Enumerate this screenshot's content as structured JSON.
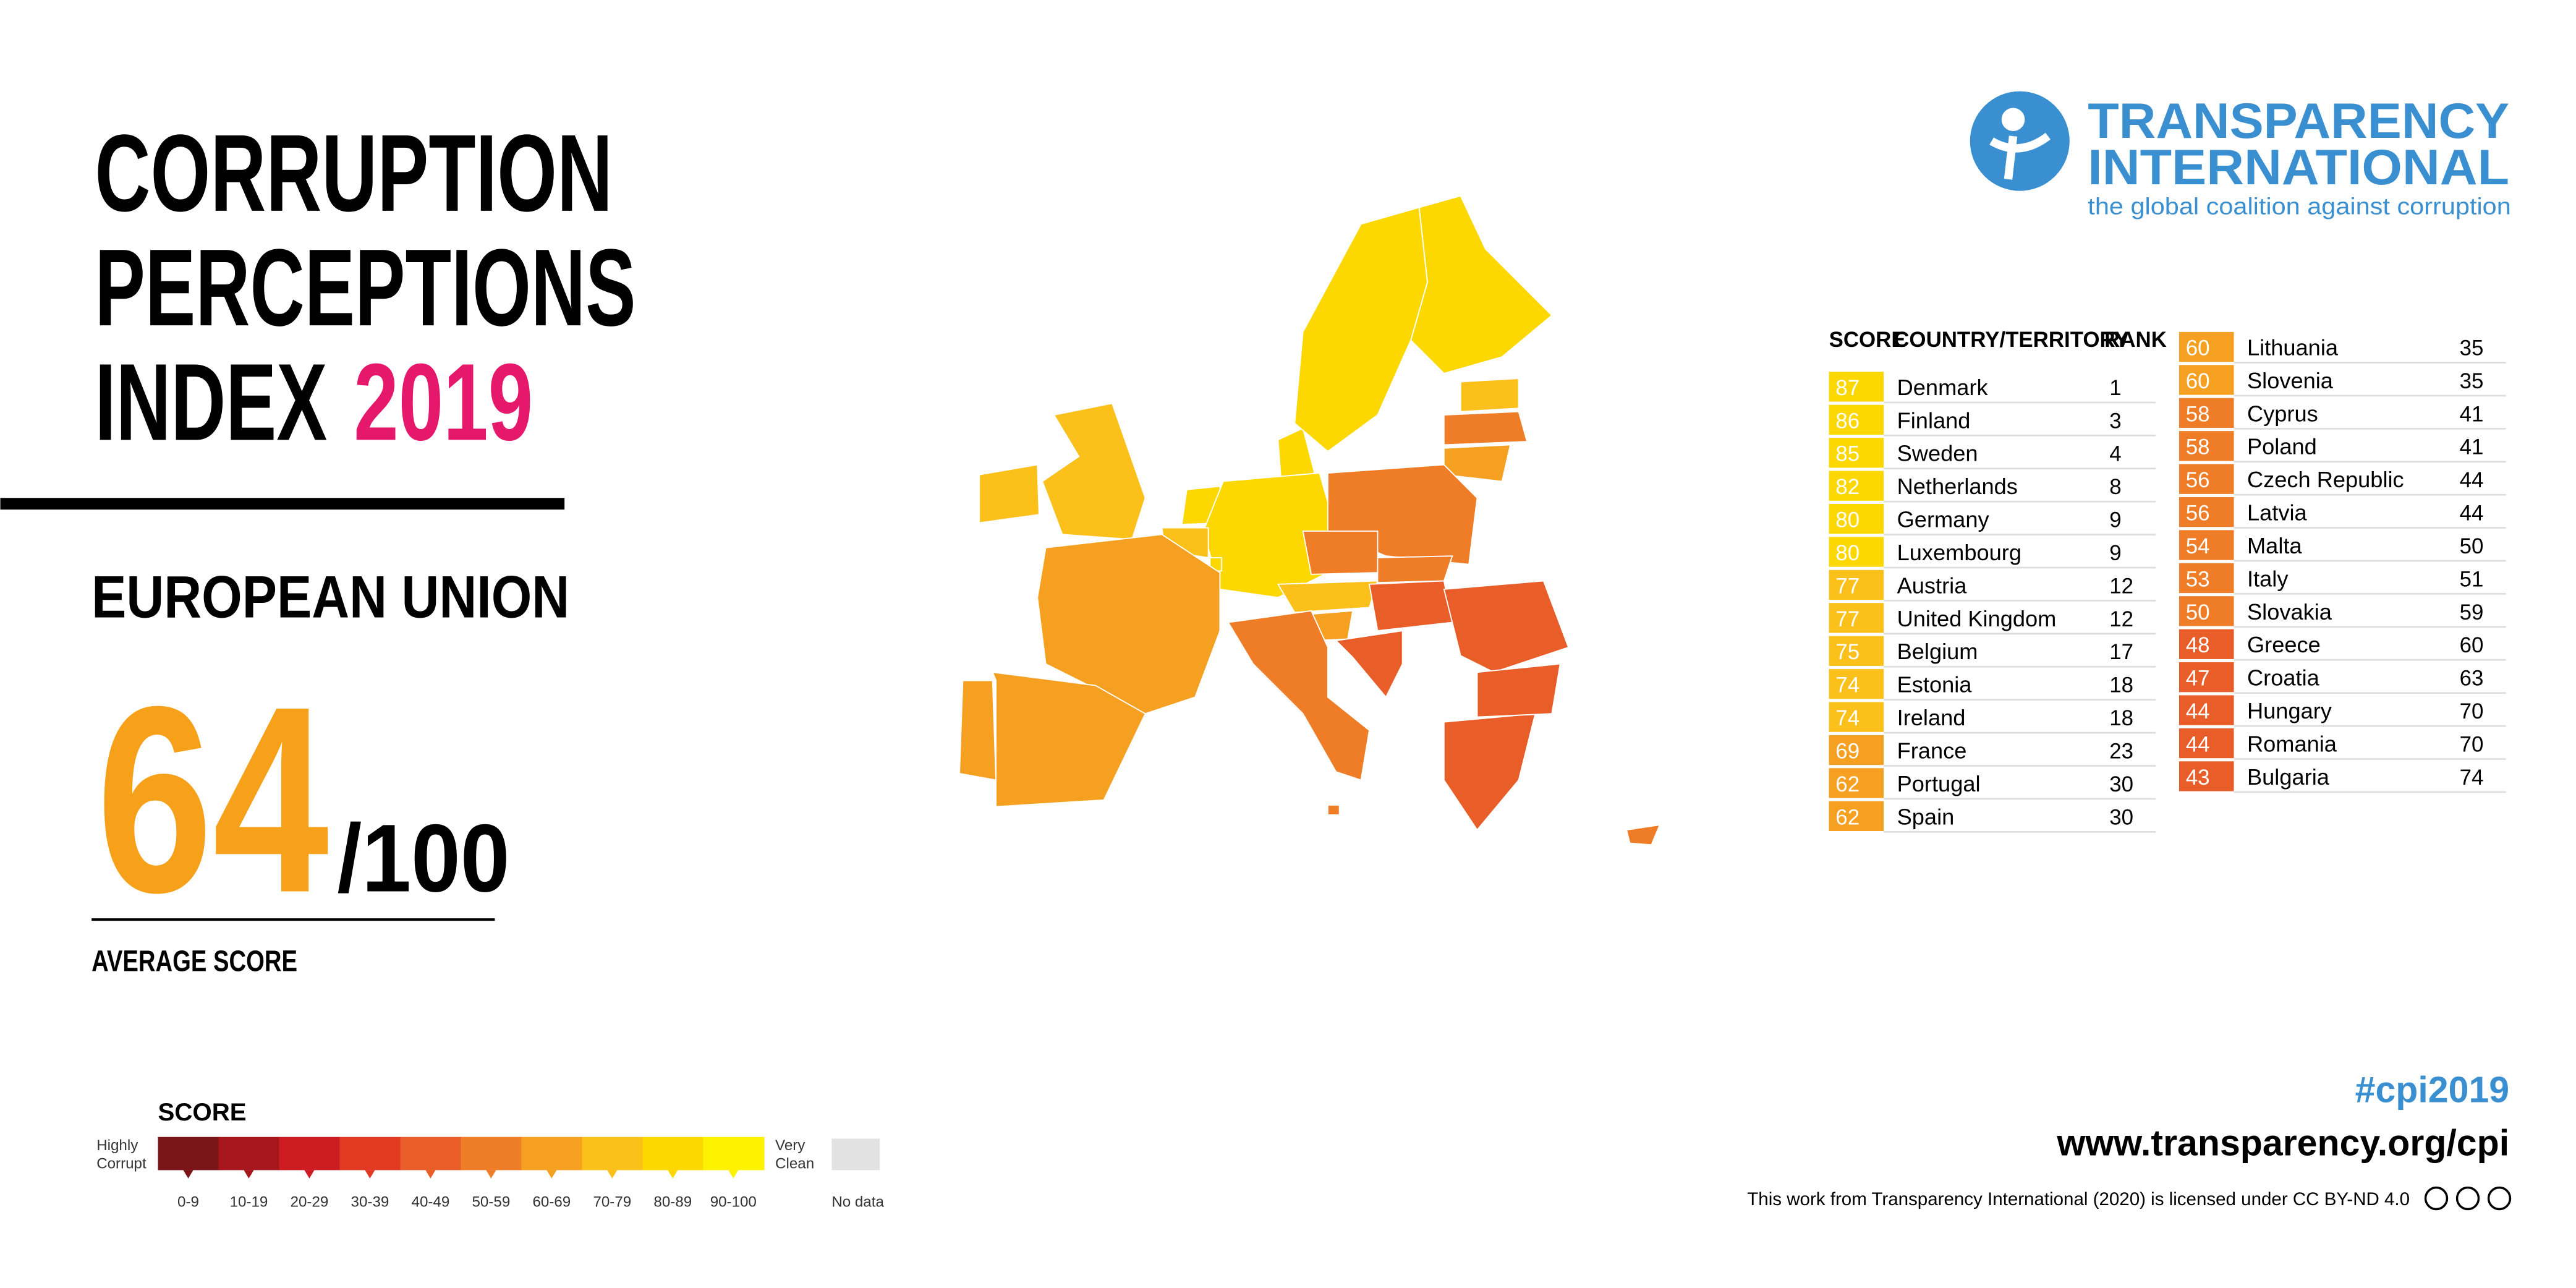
{
  "header": {
    "title": [
      "CORRUPTION",
      "PERCEPTIONS",
      "INDEX"
    ],
    "year": "2019"
  },
  "region": "EUROPEAN UNION",
  "average": {
    "score": 64,
    "out_of": "/100",
    "label": "AVERAGE SCORE"
  },
  "logo": {
    "name": [
      "TRANSPARENCY",
      "INTERNATIONAL"
    ],
    "tagline": "the global coalition against corruption"
  },
  "table": {
    "headers": [
      "SCORE",
      "COUNTRY/TERRITORY",
      "RANK"
    ],
    "rows": [
      [
        87,
        "Denmark",
        1
      ],
      [
        86,
        "Finland",
        3
      ],
      [
        85,
        "Sweden",
        4
      ],
      [
        82,
        "Netherlands",
        8
      ],
      [
        80,
        "Germany",
        9
      ],
      [
        80,
        "Luxembourg",
        9
      ],
      [
        77,
        "Austria",
        12
      ],
      [
        77,
        "United Kingdom",
        12
      ],
      [
        75,
        "Belgium",
        17
      ],
      [
        74,
        "Estonia",
        18
      ],
      [
        74,
        "Ireland",
        18
      ],
      [
        69,
        "France",
        23
      ],
      [
        62,
        "Portugal",
        30
      ],
      [
        62,
        "Spain",
        30
      ],
      [
        60,
        "Lithuania",
        35
      ],
      [
        60,
        "Slovenia",
        35
      ],
      [
        58,
        "Cyprus",
        41
      ],
      [
        58,
        "Poland",
        41
      ],
      [
        56,
        "Czech Republic",
        44
      ],
      [
        56,
        "Latvia",
        44
      ],
      [
        54,
        "Malta",
        50
      ],
      [
        53,
        "Italy",
        51
      ],
      [
        50,
        "Slovakia",
        59
      ],
      [
        48,
        "Greece",
        60
      ],
      [
        47,
        "Croatia",
        63
      ],
      [
        44,
        "Hungary",
        70
      ],
      [
        44,
        "Romania",
        70
      ],
      [
        43,
        "Bulgaria",
        74
      ]
    ]
  },
  "legend": {
    "title": "SCORE",
    "low": [
      "Highly",
      "Corrupt"
    ],
    "high": [
      "Very",
      "Clean"
    ],
    "bins": [
      "0-9",
      "10-19",
      "20-29",
      "30-39",
      "40-49",
      "50-59",
      "60-69",
      "70-79",
      "80-89",
      "90-100"
    ],
    "colors": [
      "#7b1416",
      "#a5171c",
      "#cc1b21",
      "#e23a22",
      "#e95d29",
      "#ef7c27",
      "#f6a021",
      "#fbc01a",
      "#fdd800",
      "#fff200"
    ],
    "no_data": "No data",
    "no_data_color": "#e2e2e2"
  },
  "footer": {
    "hashtag": "#cpi2019",
    "url": "www.transparency.org/cpi",
    "license": "This work from Transparency International (2020) is licensed under CC BY-ND 4.0"
  }
}
